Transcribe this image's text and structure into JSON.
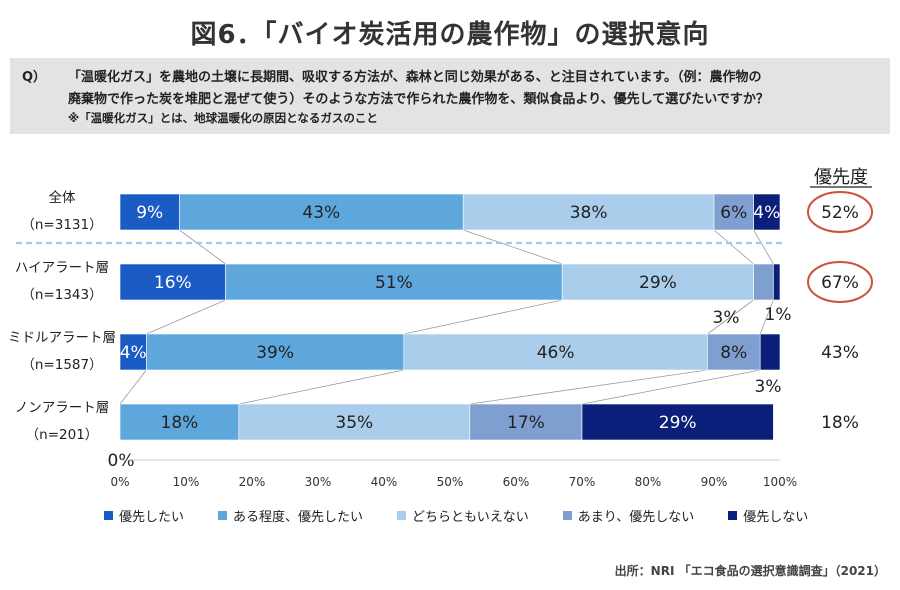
{
  "title": "図6．「バイオ炭活用の農作物」の選択意向",
  "question": {
    "label": "Q）",
    "line1": "「温暖化ガス」を農地の土壌に長期間、吸収する方法が、森林と同じ効果がある、と注目されています。（例：農作物の",
    "line2": "廃棄物で作った炭を堆肥と混ぜて使う）そのような方法で作られた農作物を、類似食品より、優先して選びたいですか？",
    "note": "※「温暖化ガス」とは、地球温暖化の原因となるガスのこと"
  },
  "priority_header": "優先度",
  "source": "出所：NRI 「エコ食品の選択意識調査」（2021）",
  "colors": [
    "#1a5bc4",
    "#5ea7dc",
    "#a9cdea",
    "#7f9fd0",
    "#0b1f7a"
  ],
  "label_colors": [
    "#ffffff",
    "#222222",
    "#222222",
    "#222222",
    "#ffffff"
  ],
  "chart_data": {
    "type": "bar",
    "orientation": "horizontal",
    "stacked": true,
    "categories": [
      "全体",
      "ハイアラート層",
      "ミドルアラート層",
      "ノンアラート層"
    ],
    "sample_sizes": [
      "（n=3131）",
      "（n=1343）",
      "（n=1587）",
      "（n=201）"
    ],
    "series": [
      {
        "name": "優先したい",
        "values": [
          9,
          16,
          4,
          0
        ]
      },
      {
        "name": "ある程度、優先したい",
        "values": [
          43,
          51,
          39,
          18
        ]
      },
      {
        "name": "どちらともいえない",
        "values": [
          38,
          29,
          46,
          35
        ]
      },
      {
        "name": "あまり、優先しない",
        "values": [
          6,
          3,
          8,
          17
        ]
      },
      {
        "name": "優先しない",
        "values": [
          4,
          1,
          3,
          29
        ]
      }
    ],
    "bar_labels": [
      [
        "9%",
        "43%",
        "38%",
        "6%",
        "4%"
      ],
      [
        "16%",
        "51%",
        "29%",
        "",
        ""
      ],
      [
        "4%",
        "39%",
        "46%",
        "8%",
        ""
      ],
      [
        "",
        "18%",
        "35%",
        "17%",
        "29%"
      ]
    ],
    "outside_labels": [
      "3%",
      "1%",
      "3%",
      "0%"
    ],
    "priority": [
      "52%",
      "67%",
      "43%",
      "18%"
    ],
    "priority_circled": [
      true,
      true,
      false,
      false
    ],
    "xlim": [
      0,
      100
    ],
    "xticks": [
      "0%",
      "10%",
      "20%",
      "30%",
      "40%",
      "50%",
      "60%",
      "70%",
      "80%",
      "90%",
      "100%"
    ],
    "legend_position": "bottom"
  }
}
